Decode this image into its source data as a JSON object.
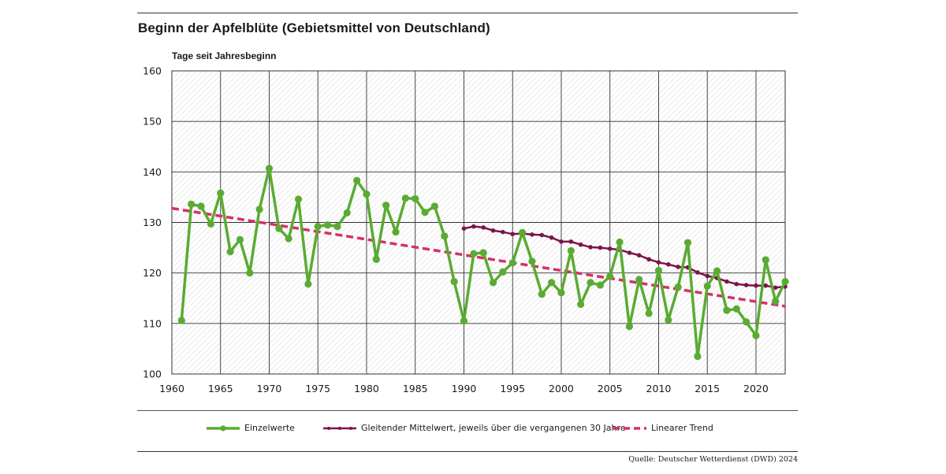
{
  "chart_data": {
    "type": "line",
    "title": "Beginn der Apfelblüte (Gebietsmittel von Deutschland)",
    "ylabel": "Tage seit Jahresbeginn",
    "xlabel": "",
    "xlim": [
      1960,
      2023
    ],
    "ylim": [
      100,
      160
    ],
    "xticks": [
      1960,
      1965,
      1970,
      1975,
      1980,
      1985,
      1990,
      1995,
      2000,
      2005,
      2010,
      2015,
      2020
    ],
    "yticks": [
      100,
      110,
      120,
      130,
      140,
      150,
      160
    ],
    "grid": true,
    "series": [
      {
        "name": "Einzelwerte",
        "color": "#5aab32",
        "style": "solid-markers",
        "x": [
          1961,
          1962,
          1963,
          1964,
          1965,
          1966,
          1967,
          1968,
          1969,
          1970,
          1971,
          1972,
          1973,
          1974,
          1975,
          1976,
          1977,
          1978,
          1979,
          1980,
          1981,
          1982,
          1983,
          1984,
          1985,
          1986,
          1987,
          1988,
          1989,
          1990,
          1991,
          1992,
          1993,
          1994,
          1995,
          1996,
          1997,
          1998,
          1999,
          2000,
          2001,
          2002,
          2003,
          2004,
          2005,
          2006,
          2007,
          2008,
          2009,
          2010,
          2011,
          2012,
          2013,
          2014,
          2015,
          2016,
          2017,
          2018,
          2019,
          2020,
          2021,
          2022,
          2023
        ],
        "values": [
          110.6,
          133.6,
          133.2,
          129.7,
          135.8,
          124.2,
          126.6,
          120.0,
          132.6,
          140.7,
          128.8,
          126.8,
          134.6,
          117.8,
          129.2,
          129.5,
          129.2,
          131.9,
          138.3,
          135.6,
          122.7,
          133.4,
          128.1,
          134.8,
          134.7,
          132.0,
          133.2,
          127.3,
          118.3,
          110.5,
          123.8,
          124.0,
          118.1,
          120.2,
          122.0,
          128.0,
          122.3,
          115.8,
          118.1,
          116.1,
          124.4,
          113.8,
          118.1,
          117.6,
          119.3,
          126.1,
          109.4,
          118.7,
          112.0,
          120.5,
          110.7,
          117.2,
          126.0,
          103.5,
          117.4,
          120.4,
          112.6,
          112.9,
          110.3,
          107.6,
          122.6,
          114.4,
          118.3
        ]
      },
      {
        "name": "Gleitender Mittelwert, jeweils über die vergangenen 30 Jahre",
        "color": "#7a1448",
        "style": "dotted-markers",
        "x": [
          1990,
          1991,
          1992,
          1993,
          1994,
          1995,
          1996,
          1997,
          1998,
          1999,
          2000,
          2001,
          2002,
          2003,
          2004,
          2005,
          2006,
          2007,
          2008,
          2009,
          2010,
          2011,
          2012,
          2013,
          2014,
          2015,
          2016,
          2017,
          2018,
          2019,
          2020,
          2021,
          2022,
          2023
        ],
        "values": [
          128.8,
          129.2,
          129.0,
          128.4,
          128.1,
          127.7,
          127.8,
          127.6,
          127.5,
          127.0,
          126.2,
          126.2,
          125.6,
          125.1,
          125.0,
          124.8,
          124.6,
          124.0,
          123.5,
          122.7,
          122.1,
          121.7,
          121.2,
          121.1,
          120.1,
          119.4,
          119.0,
          118.3,
          117.8,
          117.6,
          117.5,
          117.5,
          117.1,
          117.3
        ]
      },
      {
        "name": "Linearer Trend",
        "color": "#d63068",
        "style": "dashed",
        "x": [
          1960,
          2023
        ],
        "values": [
          132.8,
          113.4
        ]
      }
    ]
  },
  "legend": {
    "items": [
      "Einzelwerte",
      "Gleitender Mittelwert, jeweils über die vergangenen 30 Jahre",
      "Linearer Trend"
    ]
  },
  "source": "Quelle: Deutscher Wetterdienst (DWD) 2024"
}
